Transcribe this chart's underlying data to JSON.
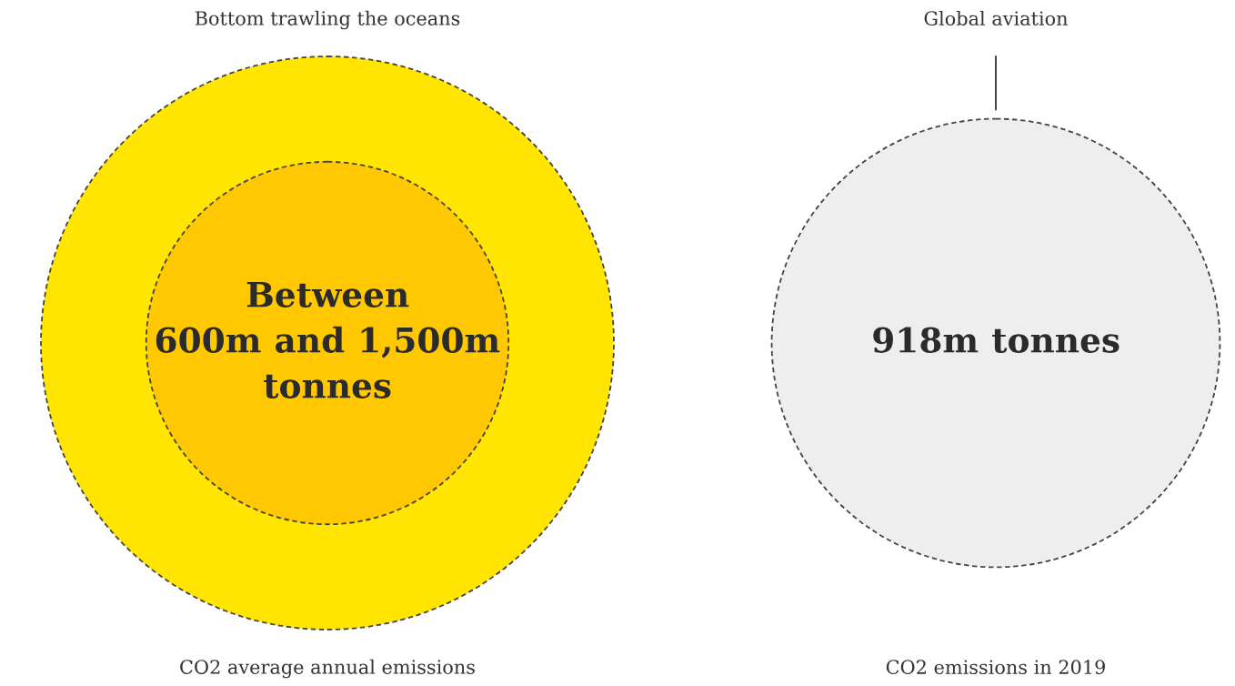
{
  "chart_data": {
    "type": "other",
    "categories": [
      "Bottom trawling the oceans",
      "Global aviation"
    ],
    "series": [
      {
        "color": "#ffc800",
        "values": [
          600,
          null
        ],
        "value_labels": [
          "600m",
          null
        ]
      },
      {
        "color": "#ffe500",
        "values": [
          1500,
          null
        ],
        "value_labels": [
          "1,500m",
          null
        ]
      },
      {
        "color": "#eeeeee",
        "values": [
          null,
          918
        ],
        "value_labels": [
          null,
          "918m"
        ]
      }
    ],
    "annotations": [
      {
        "text": "Between",
        "x": "Bottom trawling the oceans"
      },
      {
        "text": "and",
        "x": "Bottom trawling the oceans"
      },
      {
        "text": "tonnes",
        "x": "Bottom trawling the oceans"
      },
      {
        "text": "tonnes",
        "x": "Global aviation"
      },
      "CO2 average annual emissions",
      "CO2 emissions in 2019"
    ]
  }
}
